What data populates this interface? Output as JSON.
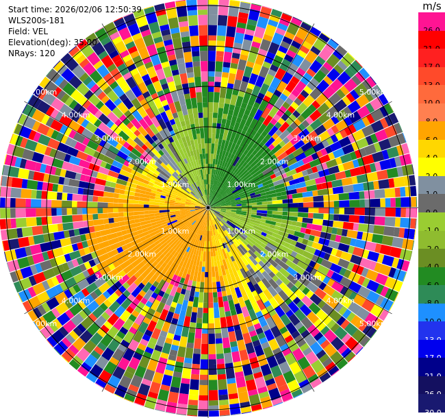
{
  "info": {
    "start_time": "Start time: 2026/02/06 12:50:39",
    "instrument": "WLS200s-181",
    "field": "Field: VEL",
    "elevation": "Elevation(deg): 35.00",
    "nrays": "NRays: 120"
  },
  "colorbar": {
    "title": "m/s",
    "levels": [
      {
        "label": "26.0",
        "color": "#ff1493",
        "text": "#000"
      },
      {
        "label": "21.0",
        "color": "#ff0000",
        "text": "#000"
      },
      {
        "label": "17.0",
        "color": "#ff2020",
        "text": "#000"
      },
      {
        "label": "13.0",
        "color": "#ff4a2a",
        "text": "#000"
      },
      {
        "label": "10.0",
        "color": "#ff6a3c",
        "text": "#000"
      },
      {
        "label": "8.0",
        "color": "#ff8050",
        "text": "#000"
      },
      {
        "label": "6.0",
        "color": "#ffa500",
        "text": "#000"
      },
      {
        "label": "4.0",
        "color": "#ffd700",
        "text": "#000"
      },
      {
        "label": "2.0",
        "color": "#ffff00",
        "text": "#000"
      },
      {
        "label": "1.0",
        "color": "#8090a0",
        "text": "#000"
      },
      {
        "label": "0.0",
        "color": "#6b6b6b",
        "text": "#000"
      },
      {
        "label": "-1.0",
        "color": "#9acd32",
        "text": "#000"
      },
      {
        "label": "-2.0",
        "color": "#8fbc2f",
        "text": "#000"
      },
      {
        "label": "-4.0",
        "color": "#6b8e23",
        "text": "#000"
      },
      {
        "label": "-6.0",
        "color": "#228b22",
        "text": "#000"
      },
      {
        "label": "-8.0",
        "color": "#2e8b57",
        "text": "#000"
      },
      {
        "label": "-10.0",
        "color": "#1e90ff",
        "text": "#000"
      },
      {
        "label": "-13.0",
        "color": "#2233ee",
        "text": "#fff"
      },
      {
        "label": "-17.0",
        "color": "#0000ee",
        "text": "#fff"
      },
      {
        "label": "-21.0",
        "color": "#00008b",
        "text": "#fff"
      },
      {
        "label": "-26.0",
        "color": "#141060",
        "text": "#fff"
      },
      {
        "label": "-30.0",
        "color": "#191970",
        "text": "#fff"
      }
    ]
  },
  "chart_data": {
    "type": "heatmap",
    "plot_type": "PPI",
    "field": "VEL",
    "units": "m/s",
    "elevation_deg": 35.0,
    "nrays": 120,
    "range_rings_km": [
      1.0,
      2.0,
      3.0,
      4.0,
      5.0
    ],
    "range_labels": [
      "1.00km",
      "2.00km",
      "3.00km",
      "4.00km",
      "5.00km"
    ],
    "color_range": [
      -30.0,
      26.0
    ],
    "inner_pattern": "approaching (yellow/orange, positive) toward SW, receding (green, negative) toward NE"
  }
}
